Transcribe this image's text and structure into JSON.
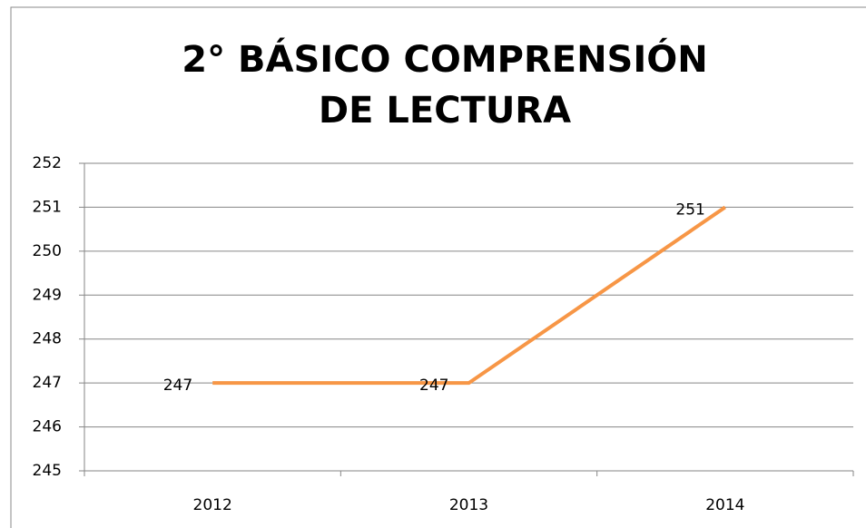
{
  "chart_data": {
    "type": "line",
    "title": "2° BÁSICO COMPRENSIÓN DE LECTURA",
    "categories": [
      "2012",
      "2013",
      "2014"
    ],
    "values": [
      247,
      247,
      251
    ],
    "color": "#f79646",
    "ylim": [
      245,
      252
    ],
    "yticks": [
      245,
      246,
      247,
      248,
      249,
      250,
      251,
      252
    ],
    "grid": true
  }
}
